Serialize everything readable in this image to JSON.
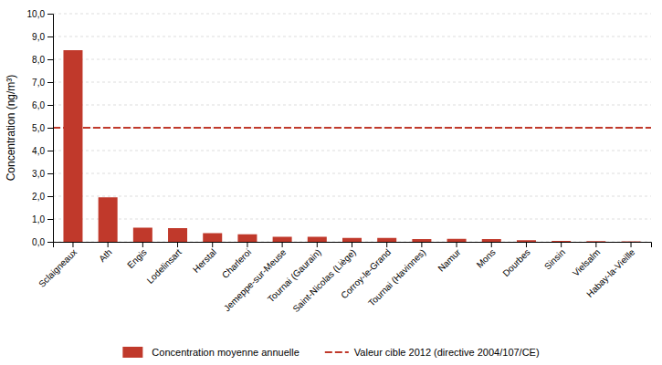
{
  "chart_data": {
    "type": "bar",
    "categories": [
      "Sclaigneaux",
      "Ath",
      "Engis",
      "Lodelinsart",
      "Herstal",
      "Charleroi",
      "Jemeppe-sur-Meuse",
      "Tournai (Gaurain)",
      "Saint-Nicolas (Liège)",
      "Corroy-le-Grand",
      "Tournai (Havinnes)",
      "Namur",
      "Mons",
      "Dourbes",
      "Sinsin",
      "Vielsalm",
      "Habay-la-Vieille"
    ],
    "series": [
      {
        "name": "Concentration moyenne annuelle",
        "color": "#c0392b",
        "values": [
          8.4,
          1.95,
          0.62,
          0.6,
          0.38,
          0.33,
          0.22,
          0.22,
          0.17,
          0.17,
          0.12,
          0.13,
          0.12,
          0.07,
          0.04,
          0.03,
          0.02
        ]
      }
    ],
    "target_line": {
      "name": "Valeur cible 2012 (directive 2004/107/CE)",
      "value": 5.0,
      "color": "#c0392b",
      "line_style": "dashed"
    },
    "ylabel": "Concentration (ng/m³)",
    "ylim": [
      0,
      10.0
    ],
    "yticks": [
      {
        "value": 0.0,
        "label": "0,0"
      },
      {
        "value": 1.0,
        "label": "1,0"
      },
      {
        "value": 2.0,
        "label": "2,0"
      },
      {
        "value": 3.0,
        "label": "3,0"
      },
      {
        "value": 4.0,
        "label": "4,0"
      },
      {
        "value": 5.0,
        "label": "5,0"
      },
      {
        "value": 6.0,
        "label": "6,0"
      },
      {
        "value": 7.0,
        "label": "7,0"
      },
      {
        "value": 8.0,
        "label": "8,0"
      },
      {
        "value": 9.0,
        "label": "9,0"
      },
      {
        "value": 10.0,
        "label": "10,0"
      }
    ],
    "grid": true,
    "legend": "bottom"
  }
}
